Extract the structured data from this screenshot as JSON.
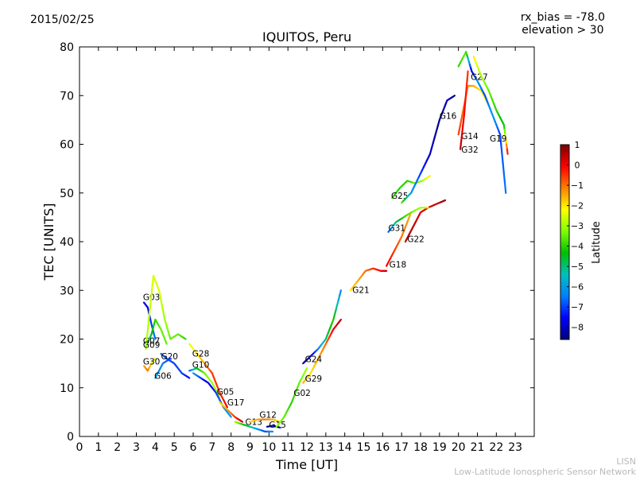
{
  "header": {
    "date": "2015/02/25",
    "title": "IQUITOS, Peru",
    "rx_bias": "rx_bias = -78.0",
    "elevation": "elevation > 30"
  },
  "footer": {
    "credit_short": "LISN",
    "credit_long": "Low-Latitude Ionospheric Sensor Network"
  },
  "chart_data": {
    "type": "scatter",
    "title": "IQUITOS, Peru",
    "xlabel": "Time [UT]",
    "ylabel": "TEC [UNITS]",
    "xlim": [
      0,
      24
    ],
    "ylim": [
      0,
      80
    ],
    "xticks": [
      0,
      1,
      2,
      3,
      4,
      5,
      6,
      7,
      8,
      9,
      10,
      11,
      12,
      13,
      14,
      15,
      16,
      17,
      18,
      19,
      20,
      21,
      22,
      23
    ],
    "yticks": [
      0,
      10,
      20,
      30,
      40,
      50,
      60,
      70,
      80
    ],
    "grid": false,
    "colorbar": {
      "label": "Latitude",
      "range": [
        -8.6,
        1.0
      ],
      "ticks": [
        1,
        0,
        -1,
        -2,
        -3,
        -4,
        -5,
        -6,
        -7,
        -8
      ],
      "colormap": [
        "#00007f",
        "#0000ff",
        "#0080ff",
        "#00c0c0",
        "#00c000",
        "#80ff00",
        "#ffff00",
        "#ff8000",
        "#ff0000",
        "#7f0000"
      ]
    },
    "series": [
      {
        "name": "G03",
        "label_at": [
          3.35,
          28.0
        ],
        "points": [
          [
            3.4,
            27.5,
            -7.5
          ],
          [
            3.6,
            26.5,
            -7.8
          ],
          [
            3.8,
            23,
            -7.0
          ],
          [
            4.0,
            20,
            -6.5
          ]
        ]
      },
      {
        "name": "G07",
        "label_at": [
          3.35,
          19.0
        ],
        "points": [
          [
            3.5,
            18.5,
            -5.5
          ],
          [
            3.8,
            21,
            -4.5
          ],
          [
            4.0,
            24,
            -4.0
          ],
          [
            4.3,
            22,
            -3.5
          ],
          [
            4.6,
            19,
            -3.5
          ]
        ]
      },
      {
        "name": "G09",
        "label_at": [
          3.35,
          18.2
        ],
        "points": [
          [
            3.5,
            18,
            -3
          ],
          [
            3.9,
            33,
            -2.5
          ],
          [
            4.2,
            30,
            -2.5
          ],
          [
            4.5,
            24,
            -3
          ],
          [
            4.8,
            20,
            -3.5
          ],
          [
            5.2,
            21,
            -3.5
          ],
          [
            5.6,
            20,
            -4
          ]
        ]
      },
      {
        "name": "G30",
        "label_at": [
          3.35,
          14.8
        ],
        "points": [
          [
            3.4,
            14.5,
            -1.5
          ],
          [
            3.6,
            13.5,
            -1.0
          ],
          [
            3.8,
            15,
            -2.0
          ],
          [
            4.0,
            16,
            -2.5
          ]
        ]
      },
      {
        "name": "G20",
        "label_at": [
          4.3,
          15.8
        ],
        "points": [
          [
            4.3,
            17,
            -6.5
          ],
          [
            4.6,
            16,
            -7
          ],
          [
            5.0,
            15,
            -7
          ],
          [
            5.4,
            13,
            -7
          ],
          [
            5.8,
            12,
            -7.5
          ]
        ]
      },
      {
        "name": "G06",
        "label_at": [
          3.95,
          11.8
        ],
        "points": [
          [
            4.0,
            12,
            -6
          ],
          [
            4.4,
            15,
            -6.5
          ],
          [
            4.8,
            16,
            -7
          ]
        ]
      },
      {
        "name": "G28",
        "label_at": [
          5.95,
          16.4
        ],
        "points": [
          [
            5.8,
            19,
            -2.5
          ],
          [
            6.2,
            17,
            -2.0
          ],
          [
            6.6,
            15,
            -1.5
          ],
          [
            7.0,
            13,
            -0.5
          ],
          [
            7.4,
            9,
            -0.5
          ],
          [
            7.8,
            6,
            0
          ]
        ]
      },
      {
        "name": "G10",
        "label_at": [
          5.95,
          14.1
        ],
        "points": [
          [
            5.8,
            13.5,
            -7
          ],
          [
            6.2,
            14,
            -4.5
          ],
          [
            6.6,
            13,
            -3.5
          ],
          [
            7.0,
            11,
            -3
          ],
          [
            7.4,
            8,
            -3
          ]
        ]
      },
      {
        "name": "G05",
        "label_at": [
          7.25,
          8.6
        ],
        "points": [
          [
            6.0,
            13,
            -6
          ],
          [
            6.4,
            12,
            -7
          ],
          [
            6.8,
            11,
            -8
          ],
          [
            7.2,
            9,
            -7
          ],
          [
            7.6,
            6,
            -6.5
          ],
          [
            8.0,
            4,
            -6
          ]
        ]
      },
      {
        "name": "G17",
        "label_at": [
          7.8,
          6.4
        ],
        "points": [
          [
            7.4,
            7,
            -2
          ],
          [
            7.8,
            5.5,
            -1.5
          ],
          [
            8.2,
            4,
            -0.5
          ],
          [
            8.6,
            3,
            0.5
          ]
        ]
      },
      {
        "name": "G13",
        "label_at": [
          8.75,
          2.4
        ],
        "points": [
          [
            8.2,
            3,
            -3
          ],
          [
            8.6,
            2.5,
            -4
          ],
          [
            9.0,
            2,
            -5
          ],
          [
            9.4,
            1.5,
            -6
          ],
          [
            9.8,
            1,
            -7
          ],
          [
            10.2,
            1,
            -6
          ]
        ]
      },
      {
        "name": "G12",
        "label_at": [
          9.5,
          3.8
        ],
        "points": [
          [
            9.0,
            3,
            -2
          ],
          [
            9.4,
            3.5,
            -1.5
          ],
          [
            9.8,
            3.5,
            -1
          ],
          [
            10.2,
            3.5,
            -1.5
          ],
          [
            10.6,
            3,
            -2
          ]
        ]
      },
      {
        "name": "G15",
        "label_at": [
          10.0,
          1.8
        ],
        "points": [
          [
            9.9,
            2,
            -8.5
          ],
          [
            10.2,
            2.2,
            -8
          ],
          [
            10.6,
            1.8,
            -7
          ]
        ]
      },
      {
        "name": "G02",
        "label_at": [
          11.3,
          8.3
        ],
        "points": [
          [
            10.4,
            2,
            -3
          ],
          [
            10.8,
            4,
            -3.5
          ],
          [
            11.2,
            7,
            -4
          ],
          [
            11.6,
            11,
            -3.5
          ],
          [
            12.0,
            14,
            -3
          ]
        ]
      },
      {
        "name": "G29",
        "label_at": [
          11.9,
          11.3
        ],
        "points": [
          [
            11.8,
            11,
            -1.5
          ],
          [
            12.2,
            13,
            -2
          ],
          [
            12.6,
            16,
            -1.5
          ],
          [
            13.0,
            19,
            -1
          ],
          [
            13.4,
            22,
            0
          ],
          [
            13.8,
            24,
            0.5
          ]
        ]
      },
      {
        "name": "G24",
        "label_at": [
          11.9,
          15.3
        ],
        "points": [
          [
            11.8,
            15,
            -8.5
          ],
          [
            12.2,
            16.5,
            -8
          ],
          [
            12.6,
            18,
            -6.5
          ],
          [
            13.0,
            20,
            -5
          ],
          [
            13.4,
            24,
            -4
          ],
          [
            13.8,
            30,
            -6.5
          ]
        ]
      },
      {
        "name": "G21",
        "label_at": [
          14.4,
          29.5
        ],
        "points": [
          [
            14.3,
            30,
            -2
          ],
          [
            14.7,
            32,
            -1.5
          ],
          [
            15.1,
            34,
            -1
          ],
          [
            15.5,
            34.5,
            -0.5
          ],
          [
            15.9,
            34,
            0
          ],
          [
            16.2,
            34,
            0.5
          ]
        ]
      },
      {
        "name": "G18",
        "label_at": [
          16.35,
          34.7
        ],
        "points": [
          [
            16.2,
            35,
            0
          ],
          [
            16.6,
            38,
            -0.5
          ],
          [
            17.0,
            41,
            -1
          ],
          [
            17.5,
            46,
            -1.5
          ]
        ]
      },
      {
        "name": "G22",
        "label_at": [
          17.3,
          39.9
        ],
        "points": [
          [
            17.2,
            40,
            0.5
          ],
          [
            17.6,
            43,
            0.5
          ],
          [
            18.0,
            46,
            0.3
          ],
          [
            18.4,
            47,
            0.2
          ],
          [
            19.0,
            48,
            0.5
          ],
          [
            19.3,
            48.5,
            0.8
          ]
        ]
      },
      {
        "name": "G31",
        "label_at": [
          16.3,
          42.2
        ],
        "points": [
          [
            16.3,
            42,
            -7
          ],
          [
            16.7,
            44,
            -5
          ],
          [
            17.1,
            45,
            -4
          ],
          [
            17.5,
            46,
            -3.5
          ],
          [
            18.0,
            47,
            -3
          ],
          [
            18.4,
            47,
            -2.5
          ]
        ]
      },
      {
        "name": "G25",
        "label_at": [
          16.45,
          48.8
        ],
        "points": [
          [
            16.5,
            49,
            -4
          ],
          [
            16.9,
            51,
            -4
          ],
          [
            17.3,
            52.5,
            -4
          ],
          [
            17.7,
            52,
            -3.5
          ],
          [
            18.1,
            52.5,
            -3
          ],
          [
            18.5,
            53.5,
            -2
          ]
        ]
      },
      {
        "name": "G16",
        "label_at": [
          19.0,
          65.2
        ],
        "points": [
          [
            17.0,
            48,
            -3.5
          ],
          [
            17.5,
            50,
            -6
          ],
          [
            18.0,
            54,
            -7
          ],
          [
            18.5,
            58,
            -8
          ],
          [
            19.0,
            65,
            -8.5
          ],
          [
            19.4,
            69,
            -8
          ],
          [
            19.8,
            70,
            -8.5
          ]
        ]
      },
      {
        "name": "G14",
        "label_at": [
          20.15,
          61.1
        ],
        "points": [
          [
            20.0,
            62,
            -0.5
          ],
          [
            20.3,
            68,
            -1
          ],
          [
            20.5,
            72,
            -1.2
          ],
          [
            20.8,
            72,
            -1.5
          ],
          [
            21.2,
            71,
            -2
          ],
          [
            21.6,
            68,
            -2.5
          ]
        ]
      },
      {
        "name": "G32",
        "label_at": [
          20.15,
          58.3
        ],
        "points": [
          [
            20.1,
            59,
            0.5
          ],
          [
            20.3,
            66,
            0
          ],
          [
            20.5,
            75,
            -0.5
          ]
        ]
      },
      {
        "name": "G27",
        "label_at": [
          20.65,
          73.2
        ],
        "points": [
          [
            20.0,
            76,
            -4
          ],
          [
            20.4,
            79,
            -3.5
          ],
          [
            20.7,
            75,
            -8
          ],
          [
            21.0,
            73,
            -6
          ],
          [
            21.4,
            70,
            -7
          ],
          [
            21.8,
            66,
            -6
          ],
          [
            22.2,
            62,
            -7
          ],
          [
            22.5,
            50,
            -6.5
          ]
        ]
      },
      {
        "name": "G19",
        "label_at": [
          21.65,
          60.6
        ],
        "points": [
          [
            20.8,
            78,
            -2
          ],
          [
            21.2,
            74,
            -3
          ],
          [
            21.6,
            71,
            -3.5
          ],
          [
            22.0,
            67,
            -4
          ],
          [
            22.4,
            64,
            -4.5
          ],
          [
            22.6,
            58,
            0
          ]
        ]
      }
    ]
  }
}
